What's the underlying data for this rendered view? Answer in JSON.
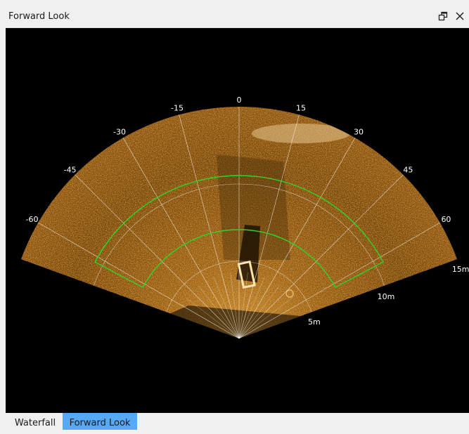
{
  "window": {
    "title": "Forward Look",
    "float_icon": "float-window-icon",
    "close_icon": "close-icon"
  },
  "sonar": {
    "angle_labels": [
      "-60",
      "-45",
      "-30",
      "-15",
      "0",
      "15",
      "30",
      "45",
      "60"
    ],
    "angle_values": [
      -60,
      -45,
      -30,
      -15,
      0,
      15,
      30,
      45,
      60
    ],
    "range_labels": [
      "5m",
      "10m",
      "15m"
    ],
    "colors": {
      "echo_base": "#7a4708",
      "echo_bright": "#f2b550",
      "grid": "#ffffff",
      "region": "#2bd62b",
      "background": "#000000"
    }
  },
  "tabs": [
    {
      "label": "Waterfall",
      "active": false
    },
    {
      "label": "Forward Look",
      "active": true
    }
  ]
}
